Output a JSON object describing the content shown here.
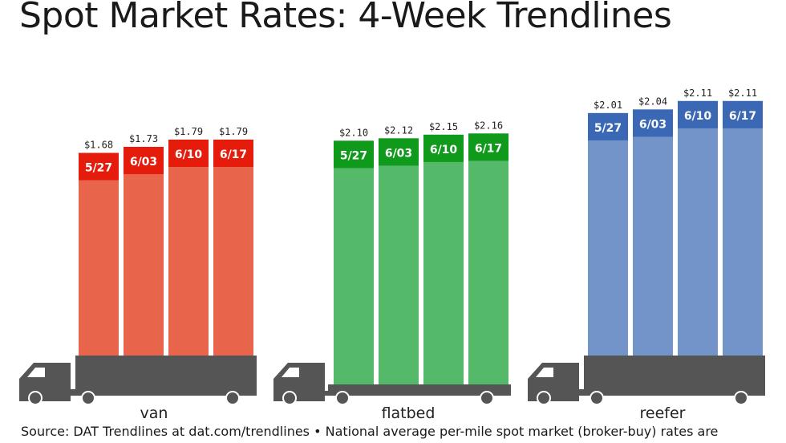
{
  "title": "Spot Market Rates: 4-Week Trendlines",
  "source": "Source: DAT Trendlines at dat.com/trendlines • National average per-mile spot market (broker-buy) rates are",
  "chart_data": {
    "type": "bar",
    "title": "Spot Market Rates: 4-Week Trendlines",
    "categories": [
      "5/27",
      "6/03",
      "6/10",
      "6/17"
    ],
    "series": [
      {
        "name": "van",
        "values": [
          1.68,
          1.73,
          1.79,
          1.79
        ],
        "labels": [
          "$1.68",
          "$1.73",
          "$1.79",
          "$1.79"
        ],
        "color": "#e8644a",
        "band_color": "#e51c0c"
      },
      {
        "name": "flatbed",
        "values": [
          2.1,
          2.12,
          2.15,
          2.16
        ],
        "labels": [
          "$2.10",
          "$2.12",
          "$2.15",
          "$2.16"
        ],
        "color": "#55b96a",
        "band_color": "#0f9a1c"
      },
      {
        "name": "reefer",
        "values": [
          2.01,
          2.04,
          2.11,
          2.11
        ],
        "labels": [
          "$2.01",
          "$2.04",
          "$2.11",
          "$2.11"
        ],
        "color": "#7394c8",
        "band_color": "#3a68b5"
      }
    ],
    "grid": false,
    "legend": "none"
  }
}
